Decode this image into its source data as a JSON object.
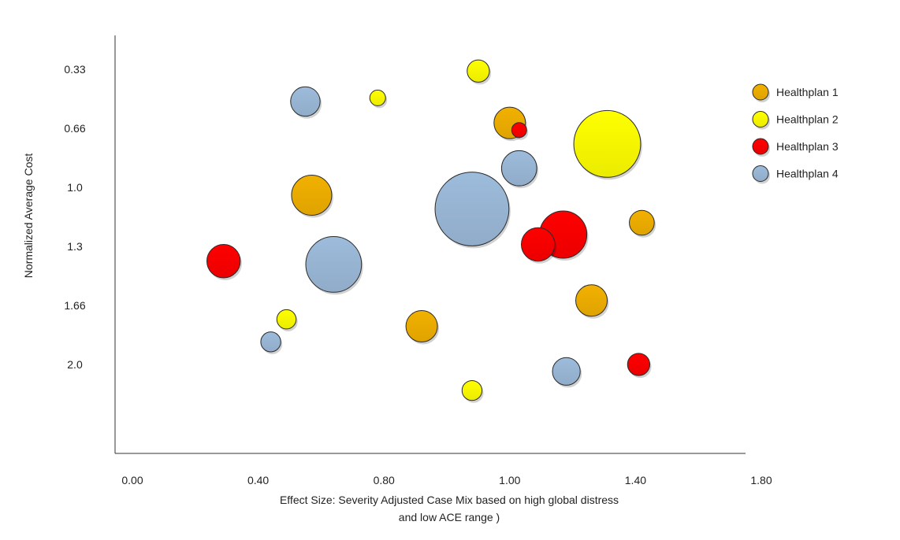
{
  "chart_data": {
    "type": "scatter",
    "subtype": "bubble",
    "title": "",
    "xlabel_lines": [
      "Effect Size: Severity Adjusted Case Mix based on high global distress",
      "and low ACE range )"
    ],
    "ylabel": "Normalized Average Cost",
    "x_ticks": [
      "0.00",
      "0.40",
      "0.80",
      "1.00",
      "1.40",
      "1.80"
    ],
    "y_ticks": [
      "0.33",
      "0.66",
      "1.0",
      "1.3",
      "1.66",
      "2.0"
    ],
    "y_reversed": true,
    "grid": false,
    "legend_position": "right",
    "series": [
      {
        "name": "Healthplan 1",
        "color": "#f2b100",
        "points": [
          {
            "x": 1.0,
            "y": 0.63,
            "size": 4
          },
          {
            "x": 0.57,
            "y": 1.04,
            "size": 6.5
          },
          {
            "x": 1.42,
            "y": 1.18,
            "size": 2.5
          },
          {
            "x": 1.26,
            "y": 1.63,
            "size": 4
          },
          {
            "x": 0.86,
            "y": 1.78,
            "size": 4
          }
        ]
      },
      {
        "name": "Healthplan 2",
        "color": "#ffff00",
        "points": [
          {
            "x": 0.95,
            "y": 0.34,
            "size": 2
          },
          {
            "x": 0.78,
            "y": 0.49,
            "size": 1
          },
          {
            "x": 1.31,
            "y": 0.75,
            "size": 18
          },
          {
            "x": 0.49,
            "y": 1.74,
            "size": 1.5
          },
          {
            "x": 0.94,
            "y": 2.15,
            "size": 1.6
          }
        ]
      },
      {
        "name": "Healthplan 3",
        "color": "#ff0000",
        "points": [
          {
            "x": 1.03,
            "y": 0.67,
            "size": 0.9
          },
          {
            "x": 1.17,
            "y": 1.24,
            "size": 9
          },
          {
            "x": 1.09,
            "y": 1.29,
            "size": 4.5
          },
          {
            "x": 0.29,
            "y": 1.39,
            "size": 4.5
          },
          {
            "x": 1.41,
            "y": 2.0,
            "size": 2
          }
        ]
      },
      {
        "name": "Healthplan 4",
        "color": "#9dbbdb",
        "points": [
          {
            "x": 0.55,
            "y": 0.51,
            "size": 3.5
          },
          {
            "x": 1.03,
            "y": 0.89,
            "size": 5
          },
          {
            "x": 0.94,
            "y": 1.11,
            "size": 22
          },
          {
            "x": 0.64,
            "y": 1.41,
            "size": 12.5
          },
          {
            "x": 0.44,
            "y": 1.87,
            "size": 1.6
          },
          {
            "x": 1.18,
            "y": 2.04,
            "size": 3.1
          }
        ]
      }
    ]
  }
}
